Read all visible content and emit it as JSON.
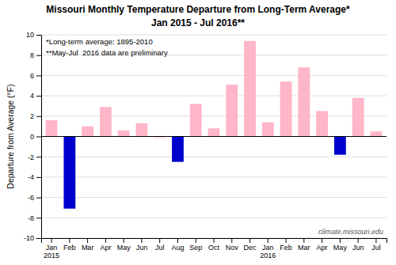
{
  "chart_data": {
    "type": "bar",
    "title": "Missouri Monthly Temperature Departure from Long-Term Average*",
    "subtitle": "Jan 2015 - Jul 2016**",
    "y_label": "Departure from Average (°F)",
    "annotations": [
      "*Long-term average: 1895-2010",
      "**May-Jul  2016 data are preliminary",
      "climate.missouri.edu"
    ],
    "categories": [
      "Jan\n2015",
      "Feb",
      "Mar",
      "Apr",
      "May",
      "Jun",
      "Jul",
      "Aug",
      "Sep",
      "Oct",
      "Nov",
      "Dec",
      "Jan\n2016",
      "Feb",
      "Mar",
      "Apr",
      "May",
      "Jun",
      "Jul"
    ],
    "values": [
      1.6,
      -7.1,
      1.0,
      2.9,
      0.6,
      1.3,
      -0.1,
      -2.5,
      3.2,
      0.8,
      5.1,
      9.4,
      1.4,
      5.4,
      6.8,
      2.5,
      -1.8,
      3.8,
      0.5
    ],
    "colors": [
      "#ffb6c8",
      "#0000cc",
      "#ffb6c8",
      "#ffb6c8",
      "#ffb6c8",
      "#ffb6c8",
      "#ffb6c8",
      "#0000cc",
      "#ffb6c8",
      "#ffb6c8",
      "#ffb6c8",
      "#ffb6c8",
      "#ffb6c8",
      "#ffb6c8",
      "#ffb6c8",
      "#ffb6c8",
      "#0000cc",
      "#ffb6c8",
      "#ffb6c8"
    ],
    "ylim": [
      -10.0,
      10.0
    ],
    "yticks": [
      -10,
      -8,
      -6,
      -4,
      -2,
      0,
      2,
      4,
      6,
      8,
      10
    ],
    "grid": true
  }
}
